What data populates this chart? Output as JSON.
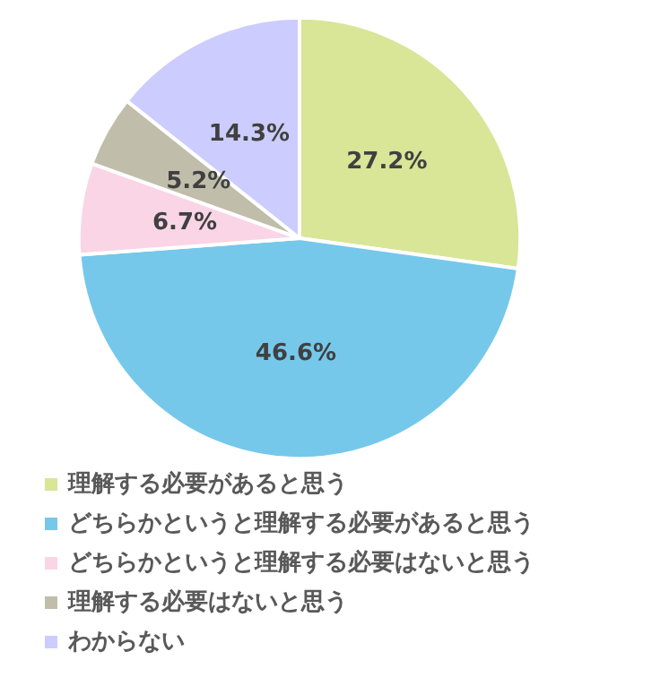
{
  "chart_data": {
    "type": "pie",
    "categories": [
      "理解する必要があると思う",
      "どちらかというと理解する必要があると思う",
      "どちらかというと理解する必要はないと思う",
      "理解する必要はないと思う",
      "わからない"
    ],
    "values": [
      27.2,
      46.6,
      6.7,
      5.2,
      14.3
    ],
    "value_labels": [
      "27.2%",
      "46.6%",
      "6.7%",
      "5.2%",
      "14.3%"
    ],
    "colors": [
      "#d9e597",
      "#75c8ea",
      "#f9d5e5",
      "#c0bdaa",
      "#ccccff"
    ],
    "legend": "bottom left"
  }
}
